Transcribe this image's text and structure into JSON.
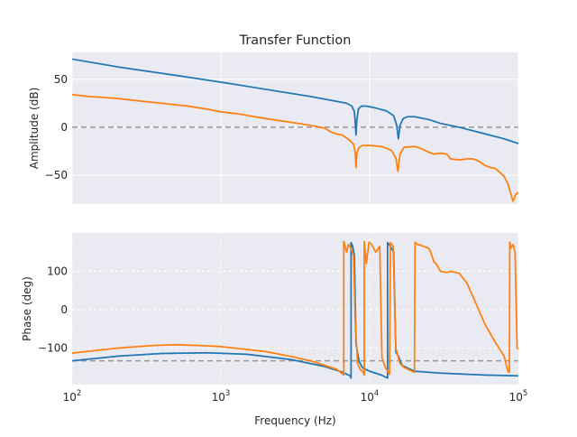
{
  "chart_data": [
    {
      "type": "line",
      "title": "Transfer Function",
      "xlabel": "",
      "ylabel": "Amplitude (dB)",
      "xscale": "log",
      "xlim": [
        100,
        100000
      ],
      "ylim": [
        -80,
        78
      ],
      "grid": true,
      "yticks": [
        {
          "v": 50,
          "label": "50"
        },
        {
          "v": 0,
          "label": "0"
        },
        {
          "v": -50,
          "label": "−50"
        }
      ],
      "reference_line": {
        "y": 0,
        "style": "dashed",
        "color": "#999999"
      },
      "series": [
        {
          "color": "#1f77b4",
          "points": [
            [
              100,
              71
            ],
            [
              200,
              63
            ],
            [
              500,
              54
            ],
            [
              1000,
              47
            ],
            [
              2000,
              39.5
            ],
            [
              4000,
              32
            ],
            [
              6000,
              27
            ],
            [
              7000,
              25
            ],
            [
              7600,
              22
            ],
            [
              7900,
              16
            ],
            [
              8000,
              5
            ],
            [
              8100,
              -8
            ],
            [
              8200,
              7
            ],
            [
              8400,
              19
            ],
            [
              8800,
              22
            ],
            [
              9500,
              22
            ],
            [
              11000,
              20
            ],
            [
              13000,
              17
            ],
            [
              14500,
              12
            ],
            [
              15200,
              2
            ],
            [
              15600,
              -12
            ],
            [
              16000,
              2
            ],
            [
              16800,
              9
            ],
            [
              18000,
              11
            ],
            [
              20000,
              11
            ],
            [
              25000,
              8
            ],
            [
              30000,
              4
            ],
            [
              40000,
              0
            ],
            [
              60000,
              -7
            ],
            [
              80000,
              -12
            ],
            [
              100000,
              -17
            ]
          ]
        },
        {
          "color": "#ff7f0e",
          "points": [
            [
              100,
              34
            ],
            [
              130,
              32
            ],
            [
              200,
              30
            ],
            [
              300,
              27
            ],
            [
              400,
              25
            ],
            [
              600,
              22
            ],
            [
              800,
              19
            ],
            [
              1000,
              16
            ],
            [
              1300,
              14
            ],
            [
              2000,
              9
            ],
            [
              3000,
              5
            ],
            [
              4000,
              2
            ],
            [
              5000,
              -1
            ],
            [
              5500,
              -5
            ],
            [
              6000,
              -7
            ],
            [
              6500,
              -8
            ],
            [
              7000,
              -11
            ],
            [
              7400,
              -14
            ],
            [
              7800,
              -18
            ],
            [
              8000,
              -26
            ],
            [
              8100,
              -42
            ],
            [
              8200,
              -27
            ],
            [
              8500,
              -21
            ],
            [
              9000,
              -19
            ],
            [
              10000,
              -19
            ],
            [
              12000,
              -20
            ],
            [
              14000,
              -24
            ],
            [
              15000,
              -32
            ],
            [
              15500,
              -46
            ],
            [
              16000,
              -28
            ],
            [
              17000,
              -21
            ],
            [
              20000,
              -20
            ],
            [
              22000,
              -22
            ],
            [
              25000,
              -26
            ],
            [
              27000,
              -28
            ],
            [
              30000,
              -27
            ],
            [
              33000,
              -28
            ],
            [
              35000,
              -33
            ],
            [
              40000,
              -34
            ],
            [
              45000,
              -33
            ],
            [
              50000,
              -33
            ],
            [
              55000,
              -36
            ],
            [
              60000,
              -40
            ],
            [
              65000,
              -42
            ],
            [
              70000,
              -43
            ],
            [
              75000,
              -47
            ],
            [
              80000,
              -51
            ],
            [
              85000,
              -59
            ],
            [
              88000,
              -67
            ],
            [
              92000,
              -77
            ],
            [
              96000,
              -70
            ],
            [
              100000,
              -68
            ]
          ]
        }
      ]
    },
    {
      "type": "line",
      "title": "",
      "xlabel": "Frequency (Hz)",
      "ylabel": "Phase (deg)",
      "xscale": "log",
      "xlim": [
        100,
        100000
      ],
      "ylim": [
        -195,
        200
      ],
      "grid": true,
      "yticks": [
        {
          "v": 100,
          "label": "100"
        },
        {
          "v": 0,
          "label": "0"
        },
        {
          "v": -100,
          "label": "−100"
        }
      ],
      "xticks": [
        {
          "v": 100,
          "base": "10",
          "exp": "2"
        },
        {
          "v": 1000,
          "base": "10",
          "exp": "3"
        },
        {
          "v": 10000,
          "base": "10",
          "exp": "4"
        },
        {
          "v": 100000,
          "base": "10",
          "exp": "5"
        }
      ],
      "reference_line": {
        "y": -133,
        "style": "dashed",
        "color": "#999999"
      },
      "series": [
        {
          "color": "#1f77b4",
          "points": [
            [
              100,
              -133
            ],
            [
              200,
              -121
            ],
            [
              400,
              -114
            ],
            [
              800,
              -112
            ],
            [
              1500,
              -116
            ],
            [
              3000,
              -130
            ],
            [
              5000,
              -148
            ],
            [
              6500,
              -162
            ],
            [
              7400,
              -172
            ],
            [
              7500,
              -178
            ],
            [
              7500,
              175
            ],
            [
              7700,
              165
            ],
            [
              7900,
              140
            ],
            [
              8100,
              -90
            ],
            [
              8500,
              -135
            ],
            [
              9000,
              -152
            ],
            [
              10000,
              -160
            ],
            [
              12000,
              -170
            ],
            [
              13200,
              -178
            ],
            [
              13200,
              175
            ],
            [
              13800,
              165
            ],
            [
              14500,
              150
            ],
            [
              15000,
              -110
            ],
            [
              15600,
              -120
            ],
            [
              16500,
              -145
            ],
            [
              20000,
              -160
            ],
            [
              30000,
              -165
            ],
            [
              60000,
              -170
            ],
            [
              100000,
              -172
            ]
          ]
        },
        {
          "color": "#ff7f0e",
          "points": [
            [
              100,
              -113
            ],
            [
              200,
              -100
            ],
            [
              350,
              -93
            ],
            [
              500,
              -91
            ],
            [
              800,
              -94
            ],
            [
              1000,
              -96
            ],
            [
              2000,
              -109
            ],
            [
              3000,
              -122
            ],
            [
              4000,
              -133
            ],
            [
              5000,
              -145
            ],
            [
              6000,
              -155
            ],
            [
              6700,
              -170
            ],
            [
              6700,
              178
            ],
            [
              7000,
              150
            ],
            [
              7200,
              170
            ],
            [
              7500,
              160
            ],
            [
              7800,
              140
            ],
            [
              8000,
              -30
            ],
            [
              8300,
              -140
            ],
            [
              8700,
              -157
            ],
            [
              9000,
              -160
            ],
            [
              9200,
              -170
            ],
            [
              9200,
              178
            ],
            [
              9500,
              120
            ],
            [
              9900,
              176
            ],
            [
              10300,
              170
            ],
            [
              11000,
              150
            ],
            [
              11700,
              165
            ],
            [
              12100,
              -125
            ],
            [
              12800,
              -152
            ],
            [
              13600,
              -168
            ],
            [
              13800,
              175
            ],
            [
              14400,
              165
            ],
            [
              15000,
              -100
            ],
            [
              16000,
              -140
            ],
            [
              17000,
              -150
            ],
            [
              20000,
              -163
            ],
            [
              20200,
              176
            ],
            [
              21000,
              170
            ],
            [
              22000,
              168
            ],
            [
              25000,
              160
            ],
            [
              26000,
              145
            ],
            [
              27000,
              125
            ],
            [
              28000,
              120
            ],
            [
              30000,
              100
            ],
            [
              33000,
              97
            ],
            [
              35000,
              100
            ],
            [
              40000,
              95
            ],
            [
              45000,
              70
            ],
            [
              50000,
              30
            ],
            [
              60000,
              -40
            ],
            [
              70000,
              -85
            ],
            [
              80000,
              -120
            ],
            [
              85000,
              -160
            ],
            [
              87000,
              -163
            ],
            [
              87500,
              176
            ],
            [
              89000,
              160
            ],
            [
              92000,
              170
            ],
            [
              95000,
              150
            ],
            [
              98000,
              -100
            ],
            [
              100000,
              -103
            ]
          ]
        }
      ]
    }
  ]
}
